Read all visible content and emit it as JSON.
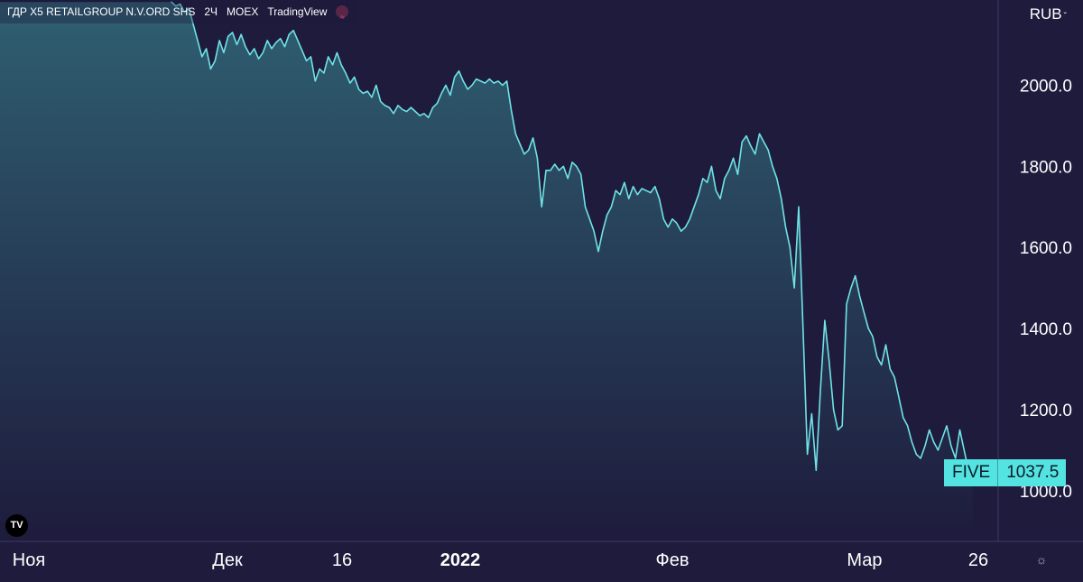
{
  "header": {
    "symbol": "ГДР X5 RETAILGROUP N.V.ORD SHS",
    "interval": "2Ч",
    "exchange": "MOEX",
    "source": "TradingView",
    "badge_icon": "currency-exchange-icon"
  },
  "currency": {
    "label": "RUB",
    "caret": "ˇ"
  },
  "last_price": {
    "ticker": "FIVE",
    "value": "1037.5"
  },
  "logo": {
    "text": "TV"
  },
  "colors": {
    "background_top": "#2f5f72",
    "background_bottom": "#1e1b3c",
    "line": "#6fe3e6",
    "tag": "#53e3e1",
    "text": "#ffffff"
  },
  "icons": {
    "settings": "gear-icon"
  },
  "chart_data": {
    "type": "line",
    "title": "",
    "xlabel": "",
    "ylabel": "",
    "ylim": [
      875,
      2210
    ],
    "y_ticks": [
      "2000.0",
      "1800.0",
      "1600.0",
      "1400.0",
      "1200.0",
      "1000.0"
    ],
    "x_ticks": [
      "Ноя",
      "Дек",
      "16",
      "2022",
      "Фев",
      "Мар",
      "26"
    ],
    "grid": false,
    "legend": "none",
    "series": [
      {
        "values": [
          2205,
          2195,
          2200,
          2180,
          2190,
          2150,
          2110,
          2070,
          2090,
          2040,
          2060,
          2110,
          2080,
          2120,
          2130,
          2100,
          2125,
          2095,
          2075,
          2090,
          2065,
          2080,
          2110,
          2090,
          2105,
          2115,
          2095,
          2125,
          2135,
          2110,
          2085,
          2060,
          2070,
          2010,
          2040,
          2030,
          2070,
          2050,
          2080,
          2050,
          2030,
          2005,
          2020,
          1990,
          1980,
          1985,
          1970,
          2000,
          1960,
          1950,
          1945,
          1930,
          1950,
          1940,
          1935,
          1945,
          1935,
          1925,
          1930,
          1920,
          1945,
          1955,
          1980,
          2000,
          1975,
          2020,
          2035,
          2010,
          1990,
          2000,
          2015,
          2010,
          2005,
          2015,
          2005,
          2010,
          2000,
          2010,
          1940,
          1880,
          1855,
          1830,
          1840,
          1870,
          1820,
          1700,
          1790,
          1790,
          1805,
          1790,
          1800,
          1770,
          1810,
          1800,
          1780,
          1700,
          1670,
          1640,
          1590,
          1640,
          1680,
          1700,
          1740,
          1730,
          1760,
          1720,
          1750,
          1730,
          1745,
          1740,
          1735,
          1750,
          1720,
          1670,
          1650,
          1670,
          1660,
          1640,
          1650,
          1670,
          1700,
          1730,
          1770,
          1760,
          1800,
          1740,
          1720,
          1770,
          1790,
          1820,
          1780,
          1860,
          1875,
          1850,
          1830,
          1880,
          1860,
          1840,
          1800,
          1770,
          1720,
          1650,
          1600,
          1500,
          1700,
          1400,
          1090,
          1190,
          1050,
          1250,
          1420,
          1320,
          1200,
          1150,
          1160,
          1460,
          1500,
          1530,
          1480,
          1440,
          1400,
          1380,
          1330,
          1310,
          1360,
          1300,
          1280,
          1230,
          1180,
          1160,
          1120,
          1090,
          1080,
          1110,
          1150,
          1120,
          1100,
          1130,
          1160,
          1110,
          1080,
          1150,
          1100,
          1050,
          1037.5
        ]
      }
    ]
  }
}
